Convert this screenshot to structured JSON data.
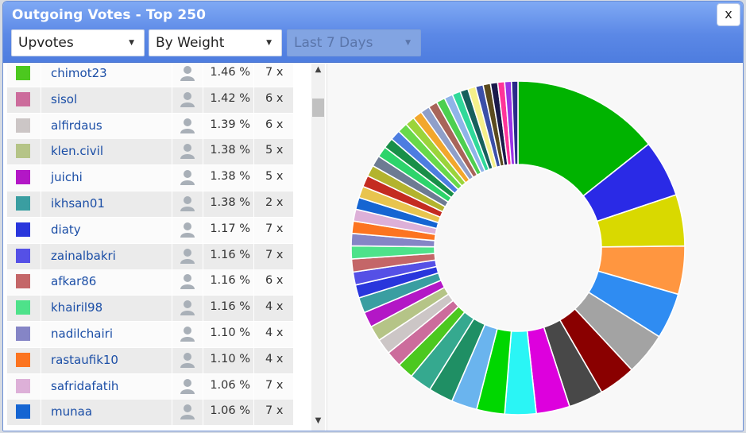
{
  "window": {
    "title": "Outgoing Votes - Top 250",
    "close_label": "x"
  },
  "filters": {
    "type": {
      "value": "Upvotes",
      "caret": "▼"
    },
    "sort": {
      "value": "By Weight",
      "caret": "▼"
    },
    "period": {
      "value": "Last 7 Days",
      "caret": "▼"
    }
  },
  "scroll": {
    "up": "▲",
    "down": "▼"
  },
  "rows": [
    {
      "color": "#4cc81f",
      "name": "chimot23",
      "pct": "1.46 %",
      "count": "7 x"
    },
    {
      "color": "#cc6c9c",
      "name": "sisol",
      "pct": "1.42 %",
      "count": "6 x"
    },
    {
      "color": "#ccc6c6",
      "name": "alfirdaus",
      "pct": "1.39 %",
      "count": "6 x"
    },
    {
      "color": "#b5c487",
      "name": "klen.civil",
      "pct": "1.38 %",
      "count": "5 x"
    },
    {
      "color": "#b317c6",
      "name": "juichi",
      "pct": "1.38 %",
      "count": "5 x"
    },
    {
      "color": "#3a9ea1",
      "name": "ikhsan01",
      "pct": "1.38 %",
      "count": "2 x"
    },
    {
      "color": "#2936dc",
      "name": "diaty",
      "pct": "1.17 %",
      "count": "7 x"
    },
    {
      "color": "#5550e6",
      "name": "zainalbakri",
      "pct": "1.16 %",
      "count": "7 x"
    },
    {
      "color": "#c46668",
      "name": "afkar86",
      "pct": "1.16 %",
      "count": "6 x"
    },
    {
      "color": "#4ee28a",
      "name": "khairil98",
      "pct": "1.16 %",
      "count": "4 x"
    },
    {
      "color": "#8585c6",
      "name": "nadilchairi",
      "pct": "1.10 %",
      "count": "4 x"
    },
    {
      "color": "#fc7420",
      "name": "rastaufik10",
      "pct": "1.10 %",
      "count": "4 x"
    },
    {
      "color": "#ddb0d8",
      "name": "safridafatih",
      "pct": "1.06 %",
      "count": "7 x"
    },
    {
      "color": "#1565d2",
      "name": "munaa",
      "pct": "1.06 %",
      "count": "7 x"
    }
  ],
  "chart_data": {
    "type": "pie",
    "donut": true,
    "legend": "left-list",
    "start_angle_deg": 0,
    "slices": [
      {
        "color": "#00b300",
        "value": 13.2
      },
      {
        "color": "#2a2ae6",
        "value": 5.1
      },
      {
        "color": "#d9d900",
        "value": 4.6
      },
      {
        "color": "#ff9640",
        "value": 4.3
      },
      {
        "color": "#2f8cf2",
        "value": 4.1
      },
      {
        "color": "#a3a3a3",
        "value": 3.8
      },
      {
        "color": "#8a0000",
        "value": 3.3
      },
      {
        "color": "#484848",
        "value": 3.1
      },
      {
        "color": "#dd00dd",
        "value": 3.0
      },
      {
        "color": "#2af5f5",
        "value": 2.8
      },
      {
        "color": "#00d700",
        "value": 2.5
      },
      {
        "color": "#6ab4ee",
        "value": 2.3
      },
      {
        "color": "#1f8f64",
        "value": 2.2
      },
      {
        "color": "#35a98f",
        "value": 2.0
      },
      {
        "color": "#4cc81f",
        "value": 1.46
      },
      {
        "color": "#cc6c9c",
        "value": 1.42
      },
      {
        "color": "#ccc6c6",
        "value": 1.39
      },
      {
        "color": "#b5c487",
        "value": 1.38
      },
      {
        "color": "#b317c6",
        "value": 1.38
      },
      {
        "color": "#3a9ea1",
        "value": 1.38
      },
      {
        "color": "#2936dc",
        "value": 1.17
      },
      {
        "color": "#5550e6",
        "value": 1.16
      },
      {
        "color": "#c46668",
        "value": 1.16
      },
      {
        "color": "#4ee28a",
        "value": 1.16
      },
      {
        "color": "#8585c6",
        "value": 1.1
      },
      {
        "color": "#fc7420",
        "value": 1.1
      },
      {
        "color": "#ddb0d8",
        "value": 1.06
      },
      {
        "color": "#1565d2",
        "value": 1.06
      },
      {
        "color": "#e8c44e",
        "value": 1.04
      },
      {
        "color": "#c42b21",
        "value": 1.02
      },
      {
        "color": "#b3b32e",
        "value": 1.0
      },
      {
        "color": "#6d7b93",
        "value": 0.98
      },
      {
        "color": "#2dd46b",
        "value": 0.96
      },
      {
        "color": "#198f48",
        "value": 0.94
      },
      {
        "color": "#4d7de0",
        "value": 0.92
      },
      {
        "color": "#68d94a",
        "value": 0.9
      },
      {
        "color": "#9bd43a",
        "value": 0.86
      },
      {
        "color": "#f2a72c",
        "value": 0.84
      },
      {
        "color": "#8f9fc9",
        "value": 0.82
      },
      {
        "color": "#a8655a",
        "value": 0.8
      },
      {
        "color": "#4dcf50",
        "value": 0.78
      },
      {
        "color": "#8fb4e8",
        "value": 0.76
      },
      {
        "color": "#30d99a",
        "value": 0.74
      },
      {
        "color": "#17605c",
        "value": 0.72
      },
      {
        "color": "#f5f08a",
        "value": 0.7
      },
      {
        "color": "#3b4fa8",
        "value": 0.68
      },
      {
        "color": "#5a4a1e",
        "value": 0.66
      },
      {
        "color": "#1a1a4a",
        "value": 0.64
      },
      {
        "color": "#ff3399",
        "value": 0.62
      },
      {
        "color": "#9a33e6",
        "value": 0.6
      },
      {
        "color": "#2a2a8a",
        "value": 0.58
      }
    ]
  }
}
